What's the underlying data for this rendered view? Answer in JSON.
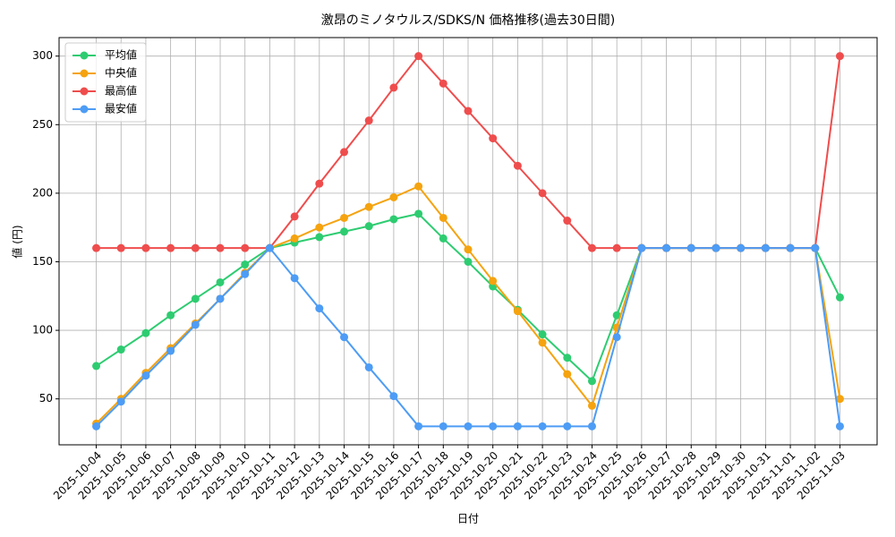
{
  "chart_data": {
    "type": "line",
    "title": "激昂のミノタウルス/SDKS/N 価格推移(過去30日間)",
    "x_label": "日付",
    "y_label": "値 (円)",
    "categories": [
      "2025-10-04",
      "2025-10-05",
      "2025-10-06",
      "2025-10-07",
      "2025-10-08",
      "2025-10-09",
      "2025-10-10",
      "2025-10-11",
      "2025-10-12",
      "2025-10-13",
      "2025-10-14",
      "2025-10-15",
      "2025-10-16",
      "2025-10-17",
      "2025-10-18",
      "2025-10-19",
      "2025-10-20",
      "2025-10-21",
      "2025-10-22",
      "2025-10-23",
      "2025-10-24",
      "2025-10-25",
      "2025-10-26",
      "2025-10-27",
      "2025-10-28",
      "2025-10-29",
      "2025-10-30",
      "2025-10-31",
      "2025-11-01",
      "2025-11-02",
      "2025-11-03"
    ],
    "series": [
      {
        "name": "平均値",
        "color": "#2ecc71",
        "values": [
          74,
          86,
          98,
          111,
          123,
          135,
          148,
          160,
          164,
          168,
          172,
          176,
          181,
          185,
          167,
          150,
          132,
          115,
          97,
          80,
          63,
          111,
          160,
          160,
          160,
          160,
          160,
          160,
          160,
          160,
          124
        ]
      },
      {
        "name": "中央値",
        "color": "#f5a30f",
        "values": [
          32,
          50,
          69,
          87,
          105,
          123,
          142,
          160,
          167,
          175,
          182,
          190,
          197,
          205,
          182,
          159,
          136,
          114,
          91,
          68,
          45,
          102,
          160,
          160,
          160,
          160,
          160,
          160,
          160,
          160,
          50
        ]
      },
      {
        "name": "最高値",
        "color": "#ef4d4d",
        "values": [
          160,
          160,
          160,
          160,
          160,
          160,
          160,
          160,
          183,
          207,
          230,
          253,
          277,
          300,
          280,
          260,
          240,
          220,
          200,
          180,
          160,
          160,
          160,
          160,
          160,
          160,
          160,
          160,
          160,
          160,
          300
        ]
      },
      {
        "name": "最安値",
        "color": "#4d9cf5",
        "values": [
          30,
          48,
          67,
          85,
          104,
          123,
          141,
          160,
          138,
          116,
          95,
          73,
          52,
          30,
          30,
          30,
          30,
          30,
          30,
          30,
          30,
          95,
          160,
          160,
          160,
          160,
          160,
          160,
          160,
          160,
          30
        ]
      }
    ],
    "ylim": [
      16.5,
      313.5
    ],
    "yticks": [
      50,
      100,
      150,
      200,
      250,
      300
    ],
    "grid": true,
    "legend": "upper left"
  }
}
